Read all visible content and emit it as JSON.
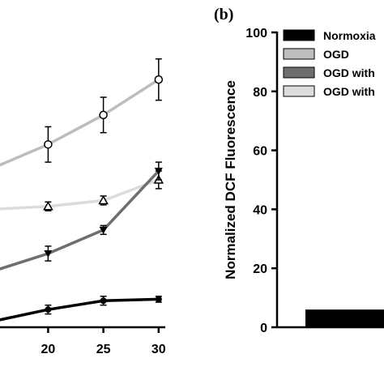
{
  "chart_data": [
    {
      "panel": "a",
      "type": "line",
      "x_ticks": [
        20,
        25,
        30
      ],
      "xlim": [
        15.5,
        30.6
      ],
      "ylim": [
        0,
        100
      ],
      "series": [
        {
          "color": "#bdbdbd",
          "marker": "open-circle",
          "x": [
            15,
            20,
            25,
            30
          ],
          "y": [
            54,
            62,
            72,
            84
          ],
          "err": [
            null,
            6,
            6,
            7
          ]
        },
        {
          "color": "#dcdcdc",
          "marker": "open-triangle",
          "x": [
            15,
            20,
            25,
            30
          ],
          "y": [
            40,
            41,
            43,
            50
          ],
          "err": [
            null,
            1.5,
            1.5,
            3
          ]
        },
        {
          "color": "#6e6e6e",
          "marker": "filled-triangle-down",
          "x": [
            15,
            20,
            25,
            30
          ],
          "y": [
            19,
            25,
            33,
            53
          ],
          "err": [
            null,
            2.5,
            1.5,
            3
          ]
        },
        {
          "color": "#000000",
          "marker": "filled-circle",
          "x": [
            15,
            20,
            25,
            30
          ],
          "y": [
            2,
            6,
            9,
            9.5
          ],
          "err": [
            null,
            1.5,
            1.5,
            1
          ]
        }
      ]
    },
    {
      "panel": "b",
      "label": "(b)",
      "type": "bar",
      "ylabel": "Normalized DCF Fluorescence",
      "ylim": [
        0,
        100
      ],
      "y_ticks": [
        0,
        20,
        40,
        60,
        80,
        100
      ],
      "legend_position": "top",
      "legend": [
        {
          "label": "Normoxia",
          "color": "#000000"
        },
        {
          "label": "OGD",
          "color": "#bdbdbd"
        },
        {
          "label": "OGD with",
          "color": "#6e6e6e"
        },
        {
          "label": "OGD with",
          "color": "#dcdcdc"
        }
      ],
      "bars": [
        {
          "series": "Normoxia",
          "value": 6,
          "color": "#000000"
        }
      ]
    }
  ]
}
